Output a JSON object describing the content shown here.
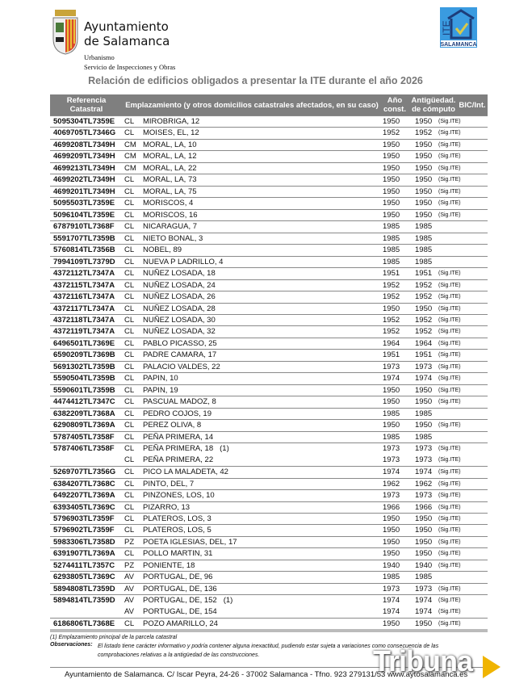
{
  "header": {
    "org_line1": "Ayuntamiento",
    "org_line2": "de Salamanca",
    "department": "Urbanismo",
    "service": "Servicio de Inspecciones y Obras",
    "ite_logo_text": "ITE SALAMANCA",
    "title": "Relación de edificios obligados a presentar la ITE durante el año 2026"
  },
  "columns": {
    "ref": "Referencia Catastral",
    "location": "Emplazamiento (y otros domicilios catastrales afectados, en su caso)",
    "year": "Año const.",
    "age": "Antigüedad. de cómputo",
    "bic": "BIC/Int."
  },
  "rows": [
    [
      "5095304TL7359E",
      "CL",
      "MIROBRIGA, 12",
      "",
      "1950",
      "1950",
      "(Sig.ITE)"
    ],
    [
      "4069705TL7346G",
      "CL",
      "MOISES, EL, 12",
      "",
      "1952",
      "1952",
      "(Sig.ITE)"
    ],
    [
      "4699208TL7349H",
      "CM",
      "MORAL, LA, 10",
      "",
      "1950",
      "1950",
      "(Sig.ITE)"
    ],
    [
      "4699209TL7349H",
      "CM",
      "MORAL, LA, 12",
      "",
      "1950",
      "1950",
      "(Sig.ITE)"
    ],
    [
      "4699213TL7349H",
      "CM",
      "MORAL, LA, 22",
      "",
      "1950",
      "1950",
      "(Sig.ITE)"
    ],
    [
      "4699202TL7349H",
      "CL",
      "MORAL, LA, 73",
      "",
      "1950",
      "1950",
      "(Sig.ITE)"
    ],
    [
      "4699201TL7349H",
      "CL",
      "MORAL, LA, 75",
      "",
      "1950",
      "1950",
      "(Sig.ITE)"
    ],
    [
      "5095503TL7359E",
      "CL",
      "MORISCOS, 4",
      "",
      "1950",
      "1950",
      "(Sig.ITE)"
    ],
    [
      "5096104TL7359E",
      "CL",
      "MORISCOS, 16",
      "",
      "1950",
      "1950",
      "(Sig.ITE)"
    ],
    [
      "6787910TL7368F",
      "CL",
      "NICARAGUA, 7",
      "",
      "1985",
      "1985",
      ""
    ],
    [
      "5591707TL7359B",
      "CL",
      "NIETO BONAL, 3",
      "",
      "1985",
      "1985",
      ""
    ],
    [
      "5760814TL7356B",
      "CL",
      "NOBEL, 89",
      "",
      "1985",
      "1985",
      ""
    ],
    [
      "7994109TL7379D",
      "CL",
      "NUEVA P LADRILLO, 4",
      "",
      "1985",
      "1985",
      ""
    ],
    [
      "4372112TL7347A",
      "CL",
      "NUÑEZ LOSADA, 18",
      "",
      "1951",
      "1951",
      "(Sig.ITE)"
    ],
    [
      "4372115TL7347A",
      "CL",
      "NUÑEZ LOSADA, 24",
      "",
      "1952",
      "1952",
      "(Sig.ITE)"
    ],
    [
      "4372116TL7347A",
      "CL",
      "NUÑEZ LOSADA, 26",
      "",
      "1952",
      "1952",
      "(Sig.ITE)"
    ],
    [
      "4372117TL7347A",
      "CL",
      "NUÑEZ LOSADA, 28",
      "",
      "1950",
      "1950",
      "(Sig.ITE)"
    ],
    [
      "4372118TL7347A",
      "CL",
      "NUÑEZ LOSADA, 30",
      "",
      "1952",
      "1952",
      "(Sig.ITE)"
    ],
    [
      "4372119TL7347A",
      "CL",
      "NUÑEZ LOSADA, 32",
      "",
      "1952",
      "1952",
      "(Sig.ITE)"
    ],
    [
      "6496501TL7369E",
      "CL",
      "PABLO PICASSO, 25",
      "",
      "1964",
      "1964",
      "(Sig.ITE)"
    ],
    [
      "6590209TL7369B",
      "CL",
      "PADRE CAMARA, 17",
      "",
      "1951",
      "1951",
      "(Sig.ITE)"
    ],
    [
      "5691302TL7359B",
      "CL",
      "PALACIO VALDES, 22",
      "",
      "1973",
      "1973",
      "(Sig.ITE)"
    ],
    [
      "5590504TL7359B",
      "CL",
      "PAPIN, 10",
      "",
      "1974",
      "1974",
      "(Sig.ITE)"
    ],
    [
      "5590601TL7359B",
      "CL",
      "PAPIN, 19",
      "",
      "1950",
      "1950",
      "(Sig.ITE)"
    ],
    [
      "4474412TL7347C",
      "CL",
      "PASCUAL MADOZ, 8",
      "",
      "1950",
      "1950",
      "(Sig.ITE)"
    ],
    [
      "6382209TL7368A",
      "CL",
      "PEDRO COJOS, 19",
      "",
      "1985",
      "1985",
      ""
    ],
    [
      "6290809TL7369A",
      "CL",
      "PEREZ OLIVA, 8",
      "",
      "1950",
      "1950",
      "(Sig.ITE)"
    ],
    [
      "5787405TL7358F",
      "CL",
      "PEÑA PRIMERA, 14",
      "",
      "1985",
      "1985",
      ""
    ],
    [
      "5787406TL7358F",
      "CL",
      "PEÑA PRIMERA, 18",
      "(1)",
      "1973",
      "1973",
      "(Sig.ITE)"
    ],
    [
      "",
      "CL",
      "PEÑA PRIMERA, 22",
      "",
      "1973",
      "1973",
      "(Sig.ITE)"
    ],
    [
      "5269707TL7356G",
      "CL",
      "PICO LA MALADETA, 42",
      "",
      "1974",
      "1974",
      "(Sig.ITE)"
    ],
    [
      "6384207TL7368C",
      "CL",
      "PINTO, DEL, 7",
      "",
      "1962",
      "1962",
      "(Sig.ITE)"
    ],
    [
      "6492207TL7369A",
      "CL",
      "PINZONES, LOS, 10",
      "",
      "1973",
      "1973",
      "(Sig.ITE)"
    ],
    [
      "6393405TL7369C",
      "CL",
      "PIZARRO, 13",
      "",
      "1966",
      "1966",
      "(Sig.ITE)"
    ],
    [
      "5796903TL7359F",
      "CL",
      "PLATEROS, LOS, 3",
      "",
      "1950",
      "1950",
      "(Sig.ITE)"
    ],
    [
      "5796902TL7359F",
      "CL",
      "PLATEROS, LOS, 5",
      "",
      "1950",
      "1950",
      "(Sig.ITE)"
    ],
    [
      "5983306TL7358D",
      "PZ",
      "POETA IGLESIAS, DEL, 17",
      "",
      "1950",
      "1950",
      "(Sig.ITE)"
    ],
    [
      "6391907TL7369A",
      "CL",
      "POLLO MARTIN, 31",
      "",
      "1950",
      "1950",
      "(Sig.ITE)"
    ],
    [
      "5274411TL7357C",
      "PZ",
      "PONIENTE, 18",
      "",
      "1940",
      "1940",
      "(Sig.ITE)"
    ],
    [
      "6293805TL7369C",
      "AV",
      "PORTUGAL, DE, 96",
      "",
      "1985",
      "1985",
      ""
    ],
    [
      "5894808TL7359D",
      "AV",
      "PORTUGAL, DE, 136",
      "",
      "1973",
      "1973",
      "(Sig.ITE)"
    ],
    [
      "5894814TL7359D",
      "AV",
      "PORTUGAL, DE, 152",
      "(1)",
      "1974",
      "1974",
      "(Sig.ITE)"
    ],
    [
      "",
      "AV",
      "PORTUGAL, DE, 154",
      "",
      "1974",
      "1974",
      "(Sig.ITE)"
    ],
    [
      "6186806TL7368E",
      "CL",
      "POZO AMARILLO, 24",
      "",
      "1950",
      "1950",
      "(Sig.ITE)"
    ]
  ],
  "notes": {
    "footnote": "(1) Emplazamiento principal de la parcela catastral",
    "obs_label": "Observaciones:",
    "obs_text": "El listado tiene carácter informativo y podría contener alguna inexactitud, pudiendo estar sujeta a variaciones como consecuencia de las comprobaciones relativas a la antigüedad de las construcciones."
  },
  "footer": {
    "text": "Ayuntamiento de Salamanca. C/ Iscar Peyra, 24-26  - 37002 Salamanca - Tfno. 923 279131/53 www.aytosalamanca.es"
  },
  "watermark": {
    "text": "Tribuna",
    "accent": "#f0b400"
  },
  "colors": {
    "header_bg": "#7f7f7f",
    "title": "#777777",
    "ite_blue": "#3a9be0"
  }
}
